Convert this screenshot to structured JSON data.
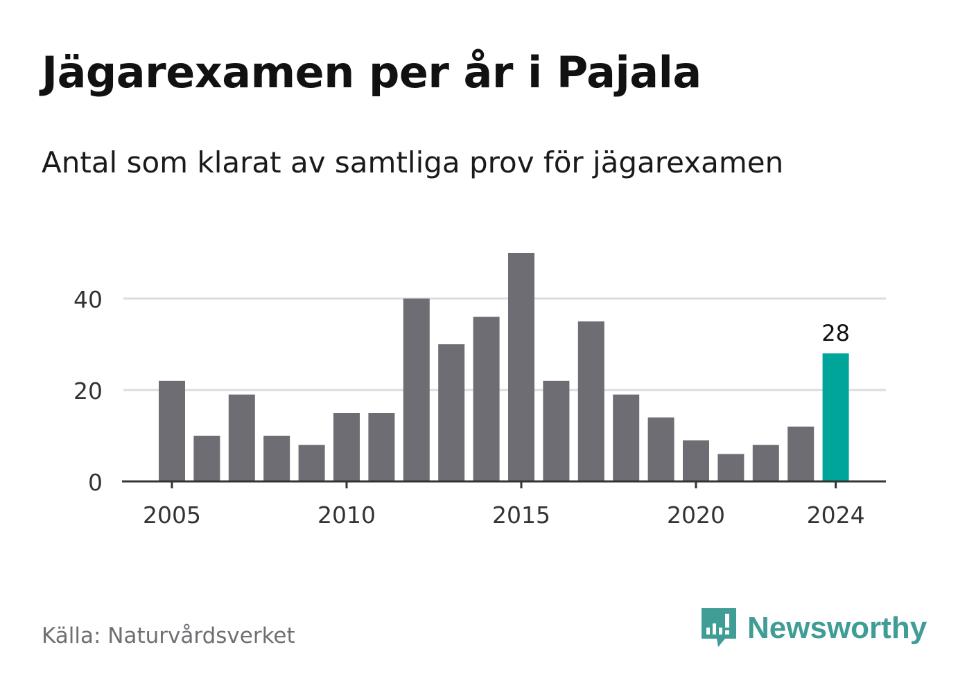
{
  "chart_data": {
    "type": "bar",
    "title": "Jägarexamen per år i Pajala",
    "subtitle": "Antal som klarat av samtliga prov för jägarexamen",
    "categories": [
      2005,
      2006,
      2007,
      2008,
      2009,
      2010,
      2011,
      2012,
      2013,
      2014,
      2015,
      2016,
      2017,
      2018,
      2019,
      2020,
      2021,
      2022,
      2023,
      2024
    ],
    "values": [
      22,
      10,
      19,
      10,
      8,
      15,
      15,
      40,
      30,
      36,
      50,
      22,
      35,
      19,
      14,
      9,
      6,
      8,
      12,
      28
    ],
    "ylim": [
      0,
      50
    ],
    "yticks": [
      0,
      20,
      40
    ],
    "xticks": [
      2005,
      2010,
      2015,
      2020,
      2024
    ],
    "grid": true,
    "highlight": {
      "category": 2024,
      "label": "28"
    },
    "colors": {
      "bar": "#6e6d73",
      "highlight": "#00a59a",
      "grid": "#dcdcdc",
      "axis": "#333333"
    }
  },
  "footer": {
    "source": "Källa: Naturvårdsverket",
    "brand": "Newsworthy",
    "brand_icon": "newsworthy-logo-icon",
    "brand_color": "#3f9d96"
  }
}
